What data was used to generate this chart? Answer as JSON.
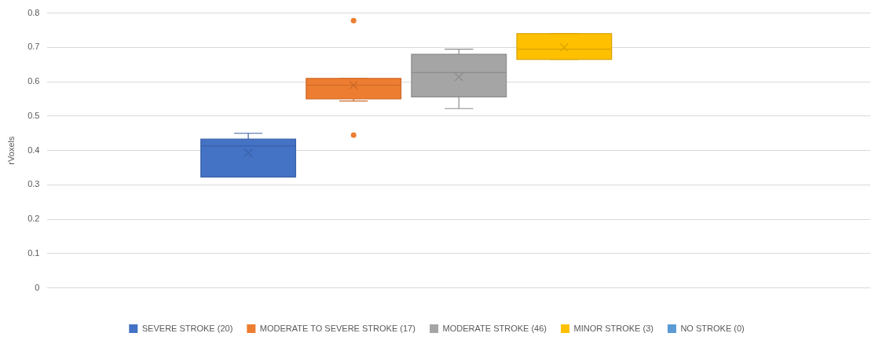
{
  "chart_data": {
    "type": "box",
    "ylabel": "rVoxels",
    "categories": [
      null
    ],
    "ylim": [
      0,
      0.8
    ],
    "yticks": [
      0,
      0.1,
      0.2,
      0.3,
      0.4,
      0.5,
      0.6,
      0.7,
      0.8
    ],
    "grid": "y",
    "legend": "bottom",
    "series": [
      {
        "name": "SEVERE STROKE (20)",
        "color": "#4472c4",
        "boxes": [
          {
            "low": 0.323,
            "q1": 0.323,
            "median": 0.413,
            "q3": 0.433,
            "high": 0.45,
            "mean": 0.393
          }
        ]
      },
      {
        "name": "MODERATE TO SEVERE STROKE (17)",
        "color": "#ed7d31",
        "boxes": [
          {
            "low": 0.544,
            "q1": 0.55,
            "median": 0.59,
            "q3": 0.61,
            "high": 0.61,
            "mean": 0.59,
            "outliers": [
              0.778,
              0.445
            ]
          }
        ]
      },
      {
        "name": "MODERATE STROKE (46)",
        "color": "#a5a5a5",
        "boxes": [
          {
            "low": 0.522,
            "q1": 0.556,
            "median": 0.627,
            "q3": 0.68,
            "high": 0.695,
            "mean": 0.614
          }
        ]
      },
      {
        "name": "MINOR STROKE (3)",
        "color": "#ffc000",
        "boxes": [
          {
            "low": 0.665,
            "q1": 0.665,
            "median": 0.695,
            "q3": 0.74,
            "high": 0.74,
            "mean": 0.7
          }
        ]
      },
      {
        "name": "NO STROKE (0)",
        "color": "#5b9bd5",
        "boxes": [
          null
        ]
      }
    ]
  }
}
